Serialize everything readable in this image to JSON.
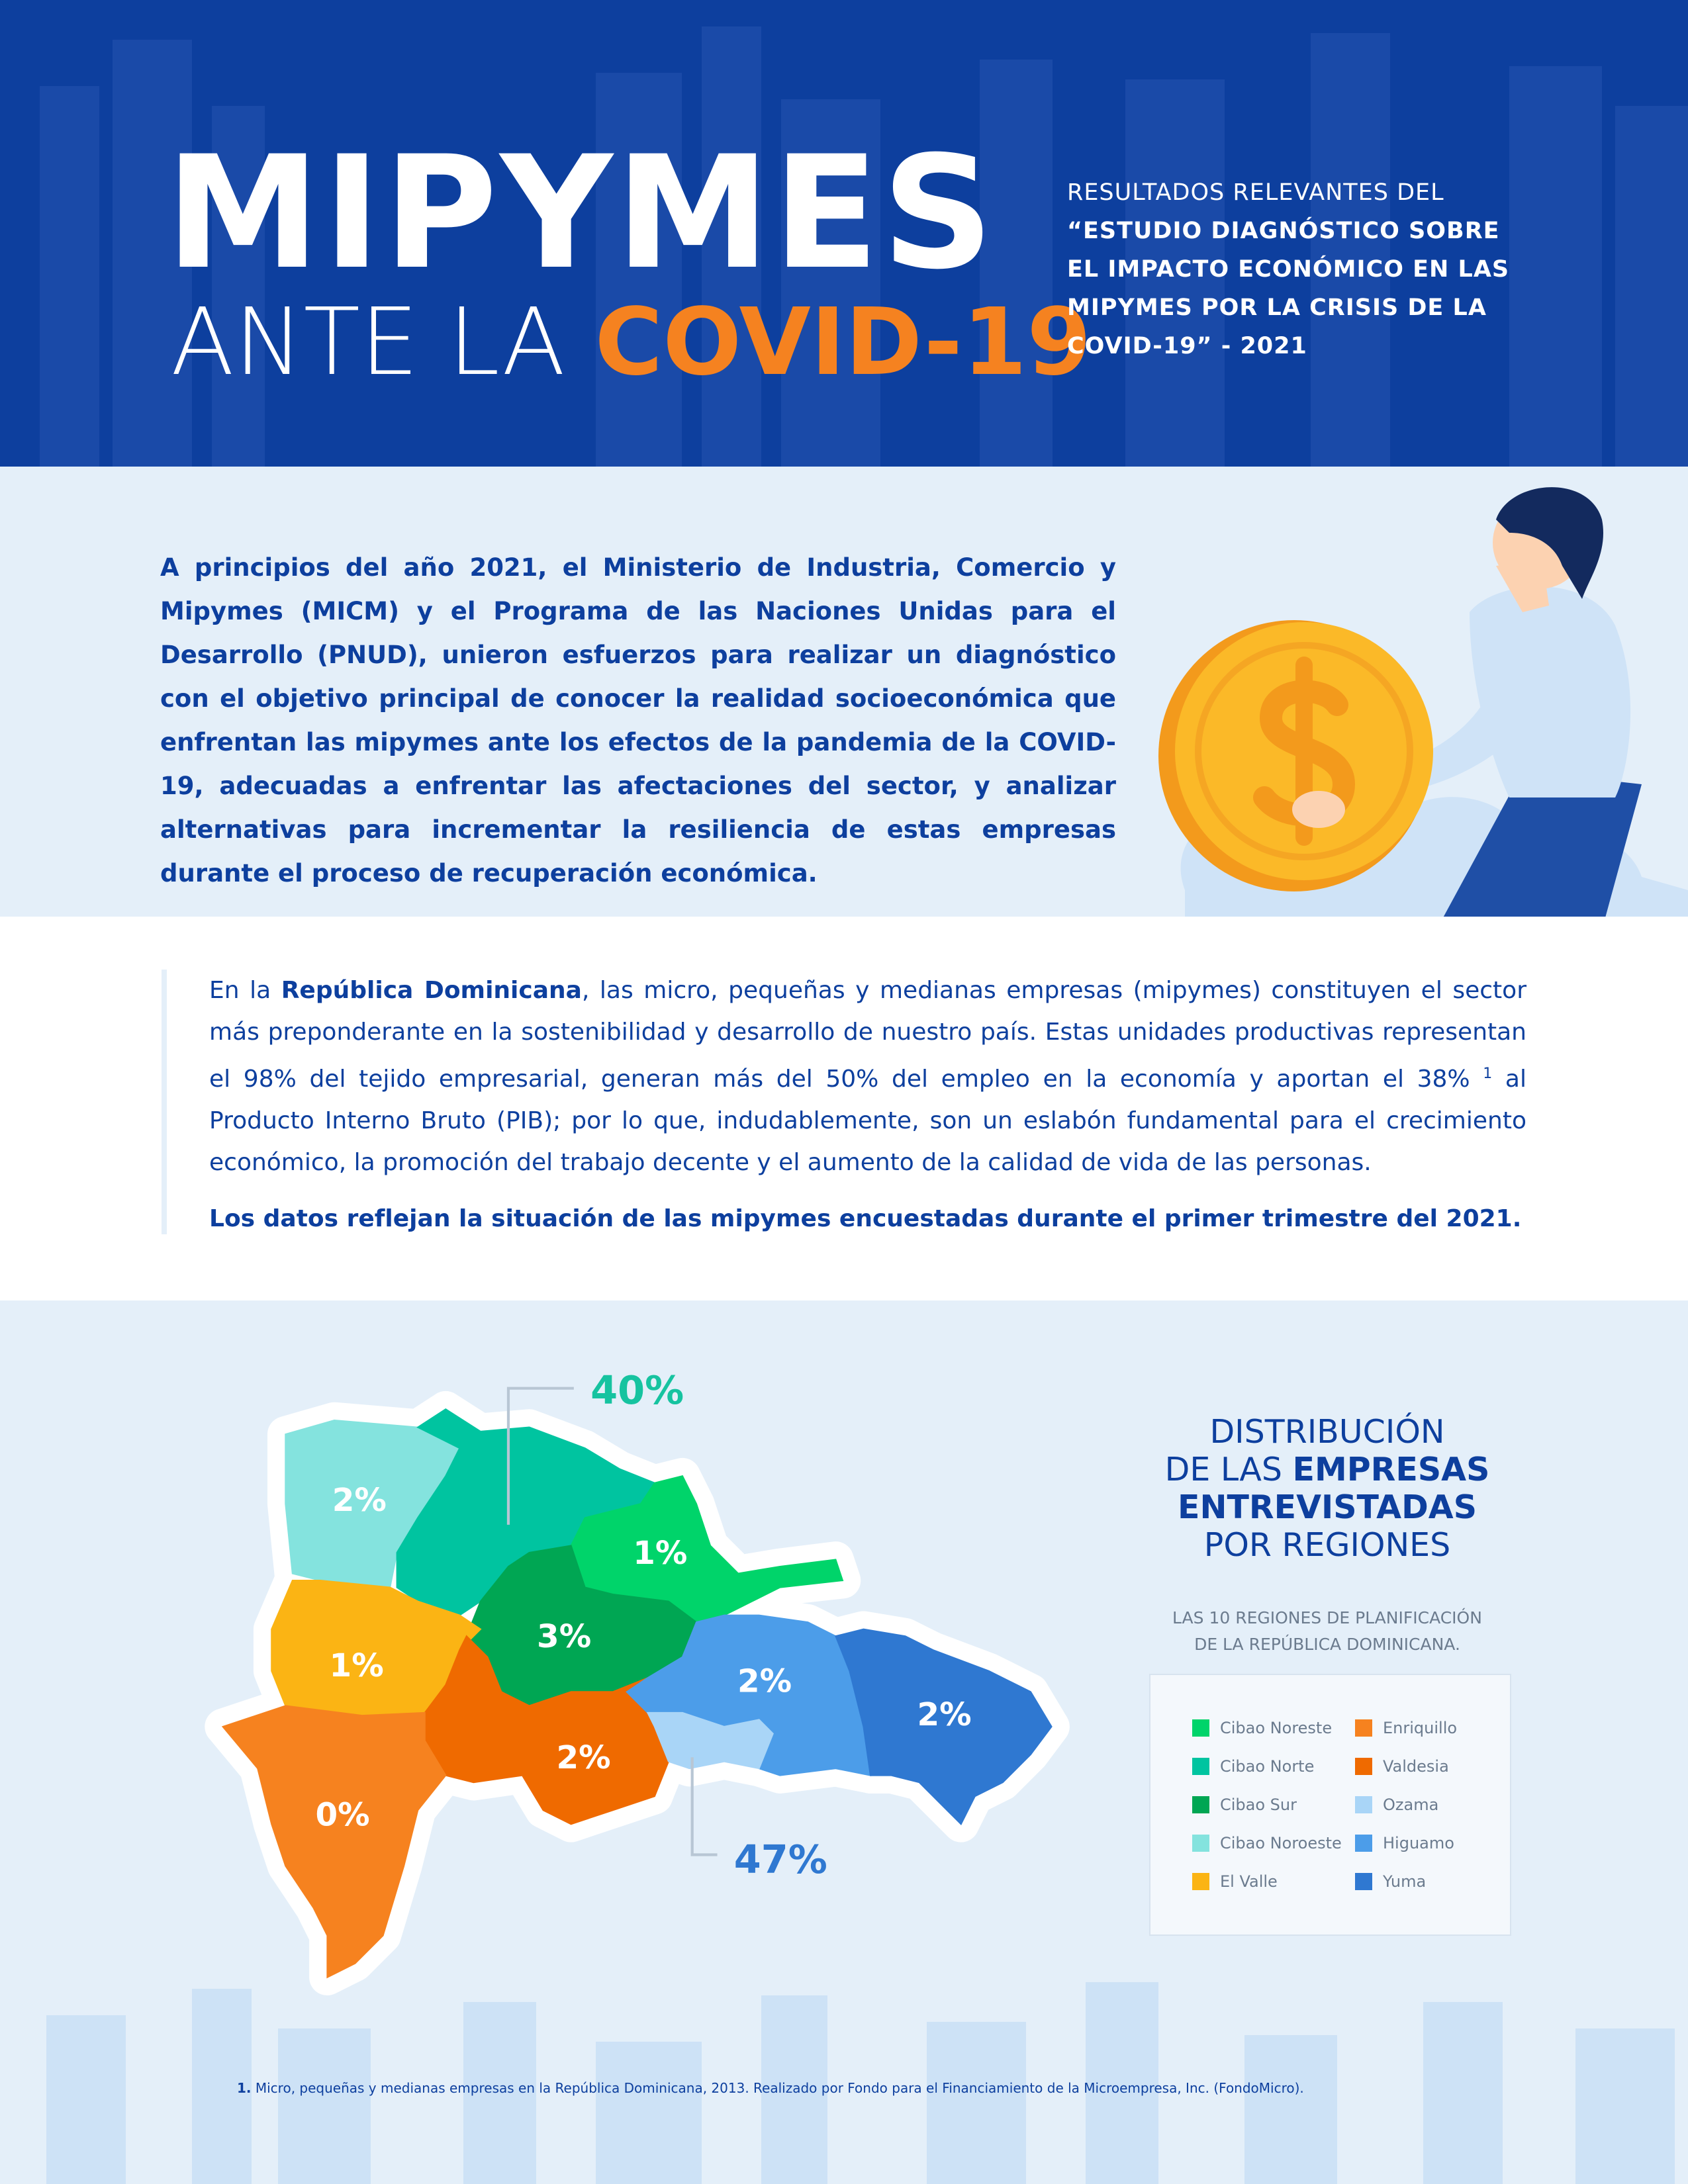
{
  "header": {
    "title_line1": "MIPYMES",
    "title_line2_a": "ANTE LA",
    "title_line2_b": "COVID-19",
    "subtitle_lines": [
      "RESULTADOS RELEVANTES DEL",
      "“ESTUDIO DIAGNÓSTICO SOBRE",
      "EL IMPACTO ECONÓMICO EN LAS",
      "MIPYMES POR LA CRISIS DE LA",
      "COVID-19” - 2021"
    ]
  },
  "intro": {
    "paragraph": "A principios del año 2021, el Ministerio de Industria, Comercio y Mipymes (MICM) y el Programa de las Naciones Unidas para el Desarrollo (PNUD), unieron esfuerzos para realizar un diagnóstico con el objetivo principal de conocer la realidad socioeconómica que enfrentan las mipymes ante los efectos de la pandemia de la COVID-19, adecuadas a enfrentar las afectaciones del sector, y analizar alternativas para incrementar la resiliencia de estas empresas durante el proceso de recuperación económica."
  },
  "context": {
    "paragraph_parts": [
      "En la ",
      "República Dominicana",
      ", las micro, pequeñas y medianas empresas (mipymes) constituyen el sector más preponderante en la sostenibilidad y desarrollo de nuestro país. Estas unidades productivas representan el 98% del tejido empresarial, generan más del 50% del empleo en la economía y aportan el 38% ",
      "1",
      " al Producto Interno Bruto (PIB); por lo que, indudablemente, son un eslabón fundamental para el crecimiento económico, la promoción del trabajo decente y el aumento de la calidad de vida de las personas."
    ],
    "closing": "Los datos reflejan la situación de las mipymes encuestadas durante el primer trimestre del 2021."
  },
  "map": {
    "labels": [
      "2%",
      "1%",
      "3%",
      "1%",
      "2%",
      "2%",
      "0%",
      "2%"
    ],
    "callouts": [
      "40%",
      "47%"
    ]
  },
  "legend": {
    "title_parts": [
      "DISTRIBUCIÓN",
      "DE LAS ",
      "EMPRESAS",
      "ENTREVISTADAS",
      "POR REGIONES"
    ],
    "subtitle_lines": [
      "LAS 10 REGIONES DE PLANIFICACIÓN",
      "DE LA REPÚBLICA DOMINICANA."
    ],
    "items": [
      {
        "name": "Cibao Noreste",
        "color": "#00d46a"
      },
      {
        "name": "Cibao Norte",
        "color": "#00c4a0"
      },
      {
        "name": "Cibao Sur",
        "color": "#00a653"
      },
      {
        "name": "Cibao Noroeste",
        "color": "#84e3de"
      },
      {
        "name": "El Valle",
        "color": "#fbb414"
      },
      {
        "name": "Enriquillo",
        "color": "#f6821f"
      },
      {
        "name": "Valdesia",
        "color": "#ef6a00"
      },
      {
        "name": "Ozama",
        "color": "#a9d5f7"
      },
      {
        "name": "Higuamo",
        "color": "#4c9de9"
      },
      {
        "name": "Yuma",
        "color": "#2f78d1"
      }
    ]
  },
  "footnote": {
    "number": "1.",
    "text": " Micro, pequeñas y medianas empresas en la República Dominicana, 2013. Realizado por Fondo para el Financiamiento de la Microempresa, Inc. (FondoMicro)."
  }
}
